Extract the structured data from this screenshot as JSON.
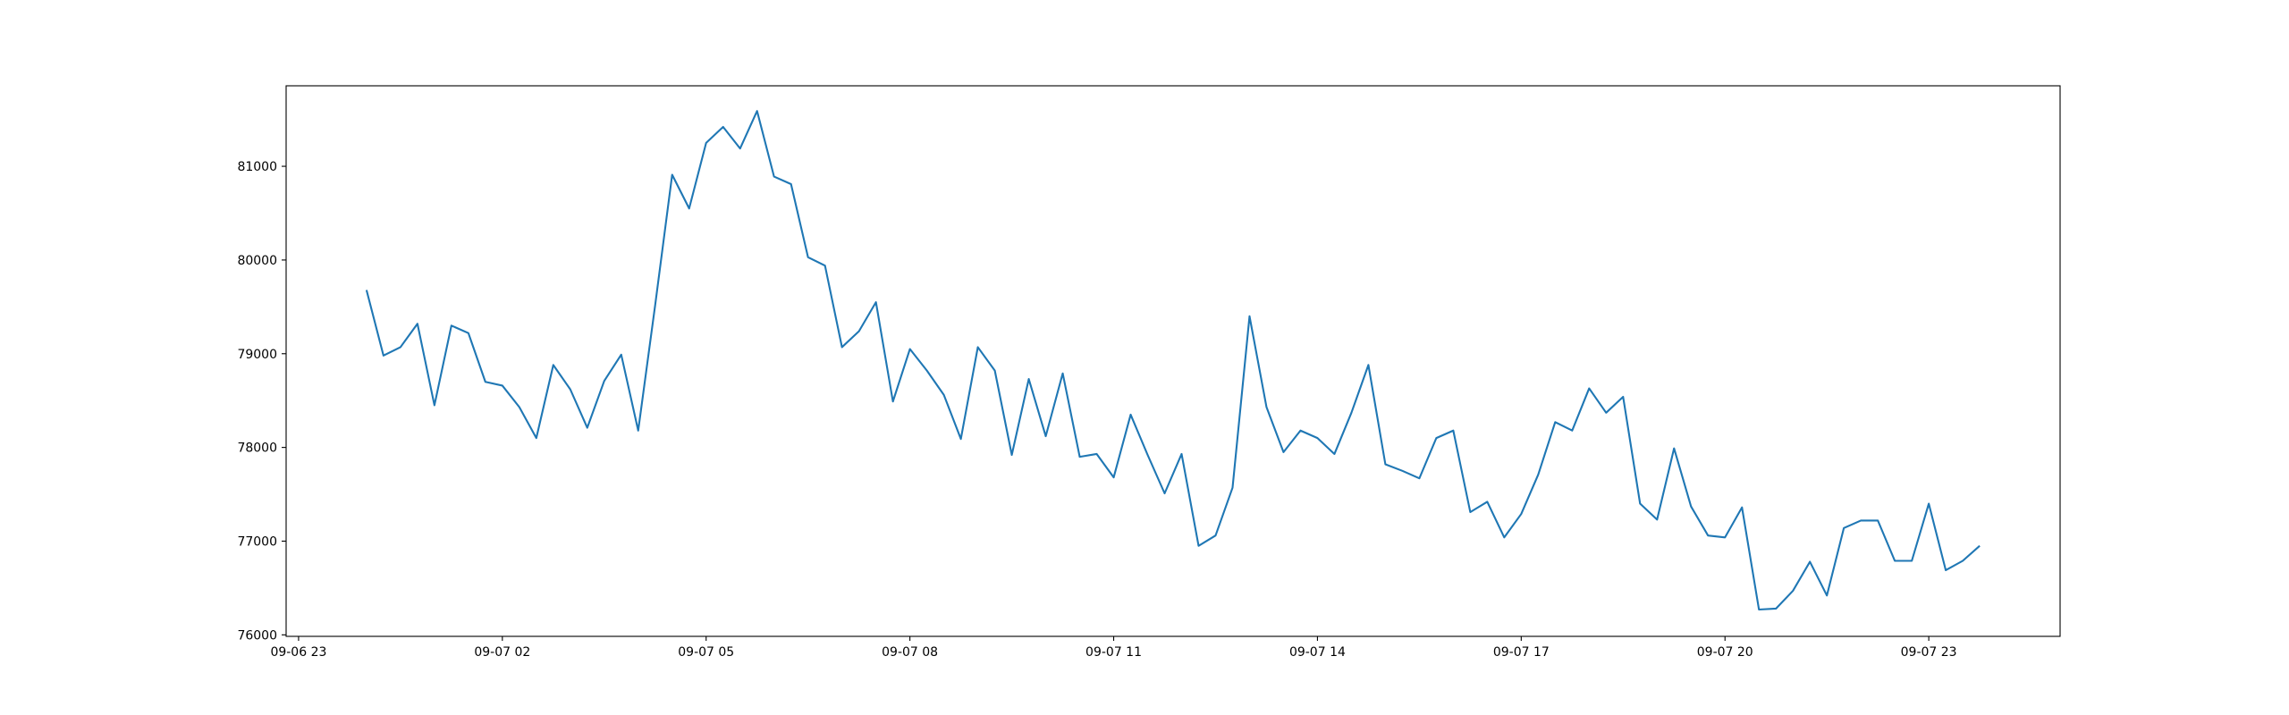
{
  "chart_data": {
    "type": "line",
    "x": [
      "09-07 00:00",
      "09-07 00:15",
      "09-07 00:30",
      "09-07 00:45",
      "09-07 01:00",
      "09-07 01:15",
      "09-07 01:30",
      "09-07 01:45",
      "09-07 02:00",
      "09-07 02:15",
      "09-07 02:30",
      "09-07 02:45",
      "09-07 03:00",
      "09-07 03:15",
      "09-07 03:30",
      "09-07 03:45",
      "09-07 04:00",
      "09-07 04:15",
      "09-07 04:30",
      "09-07 04:45",
      "09-07 05:00",
      "09-07 05:15",
      "09-07 05:30",
      "09-07 05:45",
      "09-07 06:00",
      "09-07 06:15",
      "09-07 06:30",
      "09-07 06:45",
      "09-07 07:00",
      "09-07 07:15",
      "09-07 07:30",
      "09-07 07:45",
      "09-07 08:00",
      "09-07 08:15",
      "09-07 08:30",
      "09-07 08:45",
      "09-07 09:00",
      "09-07 09:15",
      "09-07 09:30",
      "09-07 09:45",
      "09-07 10:00",
      "09-07 10:15",
      "09-07 10:30",
      "09-07 10:45",
      "09-07 11:00",
      "09-07 11:15",
      "09-07 11:30",
      "09-07 11:45",
      "09-07 12:00",
      "09-07 12:15",
      "09-07 12:30",
      "09-07 12:45",
      "09-07 13:00",
      "09-07 13:15",
      "09-07 13:30",
      "09-07 13:45",
      "09-07 14:00",
      "09-07 14:15",
      "09-07 14:30",
      "09-07 14:45",
      "09-07 15:00",
      "09-07 15:15",
      "09-07 15:30",
      "09-07 15:45",
      "09-07 16:00",
      "09-07 16:15",
      "09-07 16:30",
      "09-07 16:45",
      "09-07 17:00",
      "09-07 17:15",
      "09-07 17:30",
      "09-07 17:45",
      "09-07 18:00",
      "09-07 18:15",
      "09-07 18:30",
      "09-07 18:45",
      "09-07 19:00",
      "09-07 19:15",
      "09-07 19:30",
      "09-07 19:45",
      "09-07 20:00",
      "09-07 20:15",
      "09-07 20:30",
      "09-07 20:45",
      "09-07 21:00",
      "09-07 21:15",
      "09-07 21:30",
      "09-07 21:45",
      "09-07 22:00",
      "09-07 22:15",
      "09-07 22:30",
      "09-07 22:45",
      "09-07 23:00",
      "09-07 23:15",
      "09-07 23:30",
      "09-07 23:45"
    ],
    "series": [
      {
        "color": "#1f77b4",
        "values": [
          79680,
          78980,
          79070,
          79320,
          78450,
          79300,
          79220,
          78700,
          78660,
          78430,
          78100,
          78880,
          78620,
          78210,
          78710,
          78990,
          78180,
          79520,
          80910,
          80550,
          81250,
          81420,
          81190,
          81590,
          80890,
          80810,
          80030,
          79940,
          79070,
          79240,
          79550,
          78490,
          79050,
          78820,
          78560,
          78090,
          79070,
          78820,
          77920,
          78730,
          78120,
          78790,
          77900,
          77930,
          77680,
          78350,
          77920,
          77510,
          77930,
          76950,
          77060,
          77570,
          79400,
          78430,
          77950,
          78180,
          78100,
          77930,
          78370,
          78880,
          77820,
          77750,
          77670,
          78100,
          78180,
          77310,
          77420,
          77040,
          77290,
          77710,
          78270,
          78180,
          78630,
          78370,
          78540,
          77400,
          77230,
          77990,
          77370,
          77060,
          77040,
          77360,
          76270,
          76280,
          76470,
          76780,
          76420,
          77140,
          77220,
          77220,
          76790,
          76790,
          77400,
          76690,
          76790,
          76950
        ]
      }
    ],
    "xlim": [
      "09-06 22:49",
      "09-08 00:56"
    ],
    "xticks": [
      "09-06 23",
      "09-07 02",
      "09-07 05",
      "09-07 08",
      "09-07 11",
      "09-07 14",
      "09-07 17",
      "09-07 20",
      "09-07 23"
    ],
    "ylim": [
      75984,
      81859
    ],
    "yticks": [
      76000,
      77000,
      78000,
      79000,
      80000,
      81000
    ],
    "grid": false
  }
}
